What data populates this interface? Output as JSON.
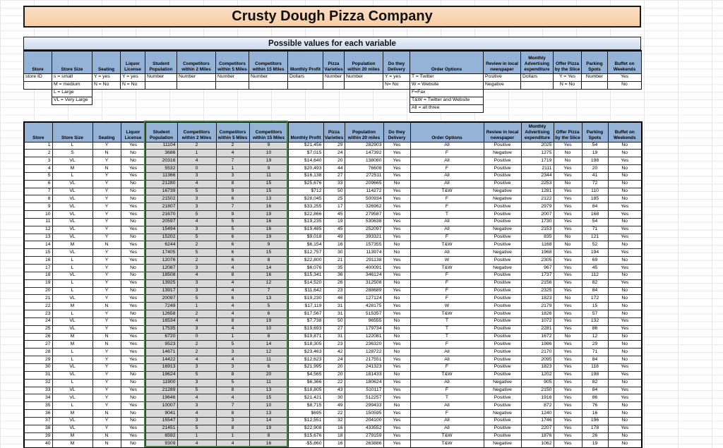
{
  "title": "Crusty Dough Pizza Company",
  "possible_values_banner": "Possible values for each variable",
  "colors": {
    "header_blue": "#95B3D7",
    "banner_blue": "#DCE6F1",
    "title_peach": "#F8D1AC",
    "gray_fill": "#D9D9D9",
    "green_border": "#3F7D41"
  },
  "columns": [
    "Store",
    "Store Size",
    "Seating",
    "Liquor License",
    "Student Population",
    "Competitors within 2 Miles",
    "Competitors within 5 Miles",
    "Competitors within 15 Miles",
    "Monthly Profit",
    "Pizza Varieties",
    "Population within 20 miles",
    "Do they Delivery",
    "Order Options",
    "Review in local newspaper",
    "Monthly Advertising expenditure",
    "Offer Pizza by the Slice",
    "Parking Spots",
    "Buffet on Weekends"
  ],
  "possible_values_rows": [
    [
      "store ID",
      "s = small",
      "Y = yes",
      "Y = yes",
      "Number",
      "Number",
      "Number",
      "Number",
      "Dollars",
      "Number",
      "Number",
      "Y = yes",
      "T = Twitter",
      "Positive",
      "Dollars",
      "Y = Yes",
      "Number",
      "Yes"
    ],
    [
      "",
      "M = medium",
      "N = No",
      "N = No",
      "",
      "",
      "",
      "",
      "",
      "",
      "",
      "N= No",
      "W = Website",
      "Negative",
      "",
      "N = No",
      "",
      "No"
    ],
    [
      "",
      "L = Large",
      "",
      "",
      "",
      "",
      "",
      "",
      "",
      "",
      "",
      "",
      "F=Fax",
      "",
      "",
      "",
      "",
      ""
    ],
    [
      "",
      "VL = Very Large",
      "",
      "",
      "",
      "",
      "",
      "",
      "",
      "",
      "",
      "",
      "T&W = Twitter and Website",
      "",
      "",
      "",
      "",
      ""
    ],
    [
      "",
      "",
      "",
      "",
      "",
      "",
      "",
      "",
      "",
      "",
      "",
      "",
      "All = all three",
      "",
      "",
      "",
      "",
      ""
    ]
  ],
  "data_rows": [
    [
      "1",
      "L",
      "Y",
      "Yes",
      "11104",
      "2",
      "2",
      "9",
      "$21,456",
      "29",
      "282903",
      "Yes",
      "All",
      "Positive",
      "2025",
      "Yes",
      "54",
      "No"
    ],
    [
      "2",
      "S",
      "N",
      "No",
      "3686",
      "1",
      "4",
      "10",
      "$7,015",
      "24",
      "147392",
      "Yes",
      "F",
      "Negative",
      "1275",
      "No",
      "19",
      "No"
    ],
    [
      "3",
      "VL",
      "Y",
      "No",
      "20316",
      "4",
      "7",
      "19",
      "$14,640",
      "20",
      "138080",
      "Yes",
      "All",
      "Positive",
      "1719",
      "No",
      "198",
      "Yes"
    ],
    [
      "4",
      "M",
      "N",
      "Yes",
      "5532",
      "0",
      "1",
      "9",
      "$20,493",
      "44",
      "76608",
      "Yes",
      "F",
      "Positive",
      "2111",
      "Yes",
      "20",
      "No"
    ],
    [
      "5",
      "L",
      "Y",
      "Yes",
      "11366",
      "3",
      "3",
      "11",
      "$16,138",
      "27",
      "272511",
      "Yes",
      "All",
      "Positive",
      "2344",
      "Yes",
      "41",
      "No"
    ],
    [
      "6",
      "VL",
      "Y",
      "No",
      "21280",
      "4",
      "8",
      "15",
      "$25,676",
      "33",
      "209665",
      "No",
      "All",
      "Positive",
      "2253",
      "No",
      "72",
      "No"
    ],
    [
      "7",
      "VL",
      "Y",
      "No",
      "16739",
      "5",
      "9",
      "15",
      "$712",
      "50",
      "114272",
      "Yes",
      "T&W",
      "Negative",
      "1281",
      "Yes",
      "110",
      "No"
    ],
    [
      "8",
      "VL",
      "Y",
      "No",
      "21502",
      "3",
      "6",
      "13",
      "$28,045",
      "25",
      "500934",
      "Yes",
      "F",
      "Negative",
      "2122",
      "Yes",
      "185",
      "No"
    ],
    [
      "9",
      "VL",
      "Y",
      "Yes",
      "21807",
      "3",
      "7",
      "16",
      "$33,255",
      "17",
      "326962",
      "Yes",
      "F",
      "Positive",
      "2979",
      "Yes",
      "84",
      "Yes"
    ],
    [
      "10",
      "VL",
      "Y",
      "Yes",
      "21670",
      "5",
      "9",
      "19",
      "$22,866",
      "45",
      "279587",
      "Yes",
      "T",
      "Positive",
      "2007",
      "Yes",
      "168",
      "Yes"
    ],
    [
      "11",
      "VL",
      "Y",
      "No",
      "20597",
      "4",
      "5",
      "16",
      "$19,235",
      "19",
      "530638",
      "Yes",
      "All",
      "Positive",
      "1730",
      "Yes",
      "54",
      "No"
    ],
    [
      "12",
      "VL",
      "Y",
      "Yes",
      "15494",
      "3",
      "5",
      "16",
      "$19,485",
      "45",
      "252097",
      "Yes",
      "All",
      "Negative",
      "2153",
      "Yes",
      "71",
      "Yes"
    ],
    [
      "13",
      "VL",
      "Y",
      "No",
      "15202",
      "5",
      "6",
      "19",
      "$9,018",
      "49",
      "393321",
      "Yes",
      "F",
      "Positive",
      "835",
      "No",
      "121",
      "Yes"
    ],
    [
      "14",
      "M",
      "N",
      "Yes",
      "6244",
      "2",
      "6",
      "9",
      "$6,154",
      "16",
      "157355",
      "No",
      "T&W",
      "Positive",
      "1168",
      "No",
      "52",
      "No"
    ],
    [
      "15",
      "VL",
      "Y",
      "Yes",
      "17405",
      "5",
      "6",
      "15",
      "$12,757",
      "30",
      "113974",
      "No",
      "All",
      "Negative",
      "1968",
      "Yes",
      "194",
      "Yes"
    ],
    [
      "16",
      "L",
      "Y",
      "Yes",
      "12076",
      "2",
      "6",
      "8",
      "$22,800",
      "21",
      "291138",
      "Yes",
      "W",
      "Positive",
      "2305",
      "Yes",
      "69",
      "No"
    ],
    [
      "17",
      "L",
      "Y",
      "No",
      "12087",
      "3",
      "4",
      "14",
      "$6,076",
      "35",
      "400091",
      "Yes",
      "T&W",
      "Negative",
      "967",
      "Yes",
      "45",
      "Yes"
    ],
    [
      "18",
      "VL",
      "Y",
      "No",
      "18508",
      "4",
      "8",
      "16",
      "$15,341",
      "36",
      "346124",
      "Yes",
      "F",
      "Positive",
      "1737",
      "Yes",
      "112",
      "No"
    ],
    [
      "19",
      "L",
      "Y",
      "Yes",
      "13925",
      "3",
      "4",
      "12",
      "$14,520",
      "26",
      "312508",
      "No",
      "F",
      "Positive",
      "2156",
      "Yes",
      "82",
      "Yes"
    ],
    [
      "20",
      "L",
      "Y",
      "No",
      "13917",
      "3",
      "4",
      "7",
      "$11,642",
      "23",
      "288689",
      "Yes",
      "F",
      "Positive",
      "2325",
      "Yes",
      "84",
      "No"
    ],
    [
      "21",
      "VL",
      "Y",
      "Yes",
      "20097",
      "5",
      "6",
      "13",
      "$19,230",
      "46",
      "127124",
      "No",
      "F",
      "Positive",
      "1823",
      "No",
      "172",
      "No"
    ],
    [
      "22",
      "M",
      "N",
      "Yes",
      "7249",
      "1",
      "4",
      "5",
      "$17,119",
      "31",
      "428175",
      "Yes",
      "W",
      "Positive",
      "2179",
      "Yes",
      "15",
      "No"
    ],
    [
      "23",
      "L",
      "Y",
      "No",
      "12658",
      "2",
      "4",
      "6",
      "$17,567",
      "31",
      "515357",
      "Yes",
      "T&W",
      "Positive",
      "1826",
      "Yes",
      "57",
      "No"
    ],
    [
      "24",
      "VL",
      "Y",
      "Yes",
      "16534",
      "4",
      "8",
      "19",
      "$7,738",
      "50",
      "96555",
      "No",
      "T",
      "Positive",
      "1072",
      "Yes",
      "132",
      "Yes"
    ],
    [
      "25",
      "VL",
      "Y",
      "Yes",
      "17535",
      "3",
      "4",
      "10",
      "$19,693",
      "27",
      "179734",
      "No",
      "T",
      "Positive",
      "2281",
      "Yes",
      "86",
      "Yes"
    ],
    [
      "26",
      "M",
      "N",
      "Yes",
      "6720",
      "0",
      "1",
      "8",
      "$19,871",
      "31",
      "122081",
      "No",
      "T",
      "Positive",
      "1672",
      "No",
      "12",
      "No"
    ],
    [
      "27",
      "M",
      "N",
      "Yes",
      "9523",
      "2",
      "5",
      "14",
      "$18,305",
      "23",
      "236320",
      "Yes",
      "F",
      "Positive",
      "1986",
      "Yes",
      "29",
      "No"
    ],
    [
      "28",
      "L",
      "Y",
      "Yes",
      "14671",
      "2",
      "3",
      "12",
      "$23,463",
      "42",
      "128722",
      "No",
      "All",
      "Positive",
      "2170",
      "Yes",
      "71",
      "No"
    ],
    [
      "29",
      "L",
      "Y",
      "Yes",
      "14422",
      "4",
      "4",
      "11",
      "$12,623",
      "24",
      "217551",
      "Yes",
      "All",
      "Positive",
      "2095",
      "Yes",
      "84",
      "No"
    ],
    [
      "30",
      "VL",
      "Y",
      "Yes",
      "16913",
      "3",
      "3",
      "6",
      "$21,995",
      "20",
      "241323",
      "Yes",
      "F",
      "Positive",
      "1823",
      "Yes",
      "118",
      "Yes"
    ],
    [
      "31",
      "VL",
      "Y",
      "No",
      "19624",
      "5",
      "8",
      "20",
      "$4,565",
      "20",
      "181433",
      "No",
      "T&W",
      "Positive",
      "1202",
      "Yes",
      "198",
      "Yes"
    ],
    [
      "32",
      "L",
      "Y",
      "No",
      "11900",
      "3",
      "5",
      "11",
      "$6,366",
      "22",
      "180624",
      "Yes",
      "All",
      "Negative",
      "905",
      "Yes",
      "82",
      "No"
    ],
    [
      "33",
      "VL",
      "Y",
      "Yes",
      "21289",
      "5",
      "8",
      "13",
      "$18,805",
      "43",
      "510117",
      "Yes",
      "F",
      "Negative",
      "2150",
      "Yes",
      "84",
      "Yes"
    ],
    [
      "34",
      "VL",
      "Y",
      "No",
      "19646",
      "4",
      "4",
      "15",
      "$21,421",
      "30",
      "512257",
      "Yes",
      "T",
      "Positive",
      "1916",
      "Yes",
      "86",
      "Yes"
    ],
    [
      "35",
      "L",
      "Y",
      "Yes",
      "10007",
      "3",
      "7",
      "10",
      "$8,715",
      "49",
      "299433",
      "No",
      "All",
      "Positive",
      "872",
      "Yes",
      "76",
      "No"
    ],
    [
      "36",
      "M",
      "N",
      "No",
      "9041",
      "4",
      "8",
      "13",
      "$695",
      "22",
      "150595",
      "Yes",
      "F",
      "Negative",
      "1240",
      "Yes",
      "16",
      "No"
    ],
    [
      "37",
      "VL",
      "Y",
      "No",
      "15547",
      "3",
      "3",
      "14",
      "$12,551",
      "32",
      "204100",
      "Yes",
      "All",
      "Positive",
      "1746",
      "Yes",
      "196",
      "No"
    ],
    [
      "38",
      "VL",
      "Y",
      "Yes",
      "21451",
      "5",
      "8",
      "19",
      "$22,908",
      "16",
      "433552",
      "Yes",
      "All",
      "Positive",
      "2207",
      "Yes",
      "178",
      "Yes"
    ],
    [
      "39",
      "M",
      "N",
      "Yes",
      "6592",
      "1",
      "1",
      "8",
      "$15,676",
      "18",
      "279159",
      "Yes",
      "T&W",
      "Positive",
      "1876",
      "Yes",
      "26",
      "No"
    ],
    [
      "40",
      "M",
      "N",
      "No",
      "9309",
      "4",
      "4",
      "16",
      "-$5,860",
      "16",
      "263886",
      "Yes",
      "T&W",
      "Negative",
      "1062",
      "Yes",
      "19",
      "No"
    ]
  ]
}
